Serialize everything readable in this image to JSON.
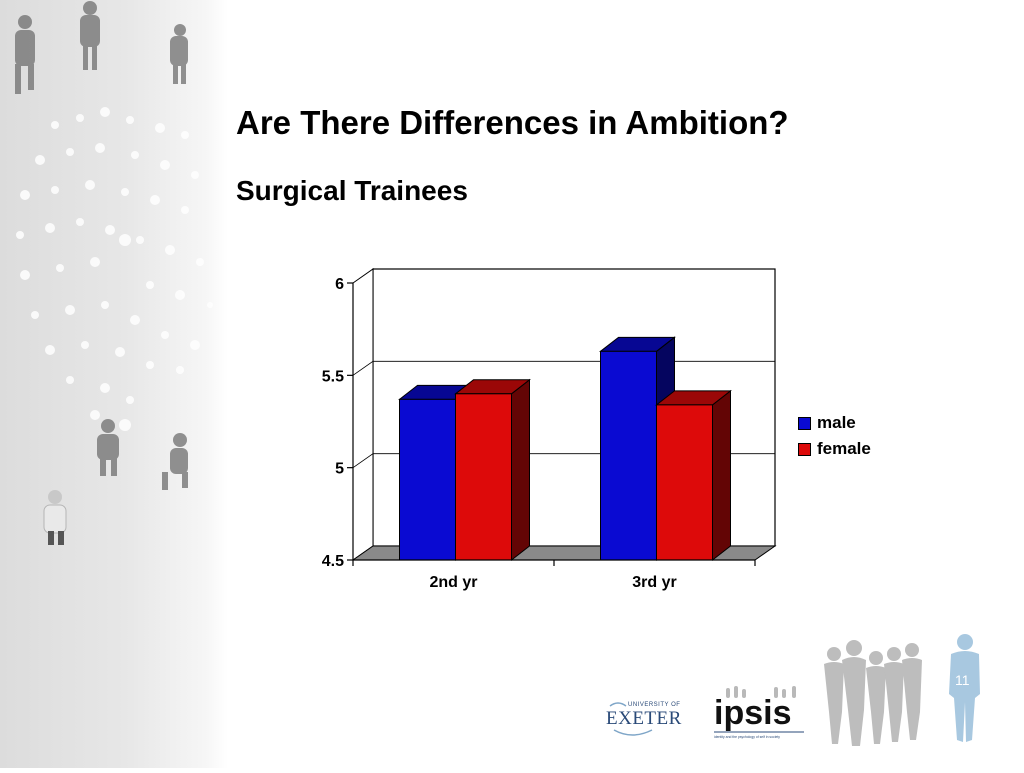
{
  "slide": {
    "title": "Are There Differences in Ambition?",
    "subtitle": "Surgical Trainees",
    "page_number": "11"
  },
  "logos": {
    "exeter": {
      "line1": "UNIVERSITY OF",
      "line2": "EXETER"
    },
    "ipsis": {
      "name": "ipsis",
      "tagline": "identity and the psychology of self in society"
    }
  },
  "colors": {
    "male": "#0a0ad2",
    "female": "#dd0a0a",
    "floor": "#8a8a8a"
  },
  "chart_data": {
    "type": "bar",
    "style": "3d-clustered",
    "categories": [
      "2nd yr",
      "3rd yr"
    ],
    "series": [
      {
        "name": "male",
        "values": [
          5.37,
          5.63
        ]
      },
      {
        "name": "female",
        "values": [
          5.4,
          5.34
        ]
      }
    ],
    "ylim": [
      4.5,
      6
    ],
    "yticks": [
      4.5,
      5,
      5.5,
      6
    ],
    "ytick_labels": [
      "4.5",
      "5",
      "5.5",
      "6"
    ],
    "gridlines": [
      5,
      5.5
    ],
    "legend": "right"
  }
}
